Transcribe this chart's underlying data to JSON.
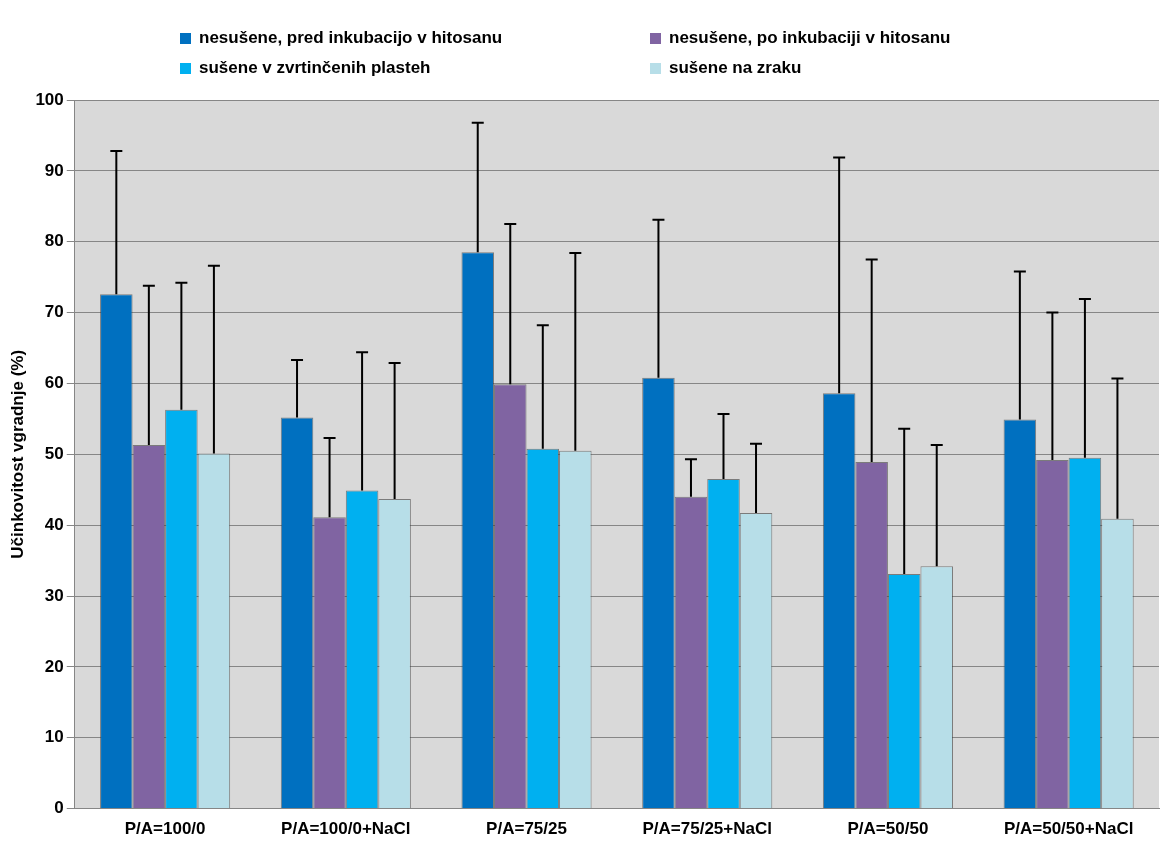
{
  "chart_data": {
    "type": "bar",
    "ylabel": "Učinkovitost vgradnje (%)",
    "categories": [
      "P/A=100/0",
      "P/A=100/0+NaCl",
      "P/A=75/25",
      "P/A=75/25+NaCl",
      "P/A=50/50",
      "P/A=50/50+NaCl"
    ],
    "series": [
      {
        "name": "nesušene, pred inkubacijo v hitosanu",
        "color": "#0070c0",
        "values": [
          72.6,
          55.2,
          78.5,
          60.8,
          58.6,
          54.9
        ],
        "errors": [
          [
            72.6,
            92.8
          ],
          [
            55.2,
            63.3
          ],
          [
            78.5,
            96.8
          ],
          [
            60.8,
            83.1
          ],
          [
            58.6,
            91.9
          ],
          [
            54.9,
            75.8
          ]
        ]
      },
      {
        "name": "nesušene, po inkubaciji v hitosanu",
        "color": "#8064a2",
        "values": [
          51.3,
          41.1,
          59.9,
          44.0,
          48.9,
          49.2
        ],
        "errors": [
          [
            51.3,
            73.8
          ],
          [
            41.1,
            52.3
          ],
          [
            59.9,
            82.5
          ],
          [
            44.0,
            49.3
          ],
          [
            48.9,
            77.5
          ],
          [
            49.2,
            70.0
          ]
        ]
      },
      {
        "name": "sušene v zvrtinčenih plasteh",
        "color": "#00b0f0",
        "values": [
          56.3,
          44.9,
          50.8,
          46.5,
          33.1,
          49.5
        ],
        "errors": [
          [
            56.3,
            74.2
          ],
          [
            44.9,
            64.4
          ],
          [
            50.8,
            68.2
          ],
          [
            46.5,
            55.7
          ],
          [
            33.1,
            53.6
          ],
          [
            49.5,
            71.9
          ]
        ]
      },
      {
        "name": "sušene na zraku",
        "color": "#b7dee8",
        "values": [
          50.1,
          43.7,
          50.5,
          41.7,
          34.2,
          40.9
        ],
        "errors": [
          [
            50.1,
            76.6
          ],
          [
            43.7,
            62.9
          ],
          [
            50.5,
            78.4
          ],
          [
            41.7,
            51.5
          ],
          [
            34.2,
            51.3
          ],
          [
            40.9,
            60.7
          ]
        ]
      }
    ],
    "ylim": [
      0,
      100
    ],
    "yticks": [
      0,
      10,
      20,
      30,
      40,
      50,
      60,
      70,
      80,
      90,
      100
    ],
    "grid": "y",
    "legend": "top"
  }
}
